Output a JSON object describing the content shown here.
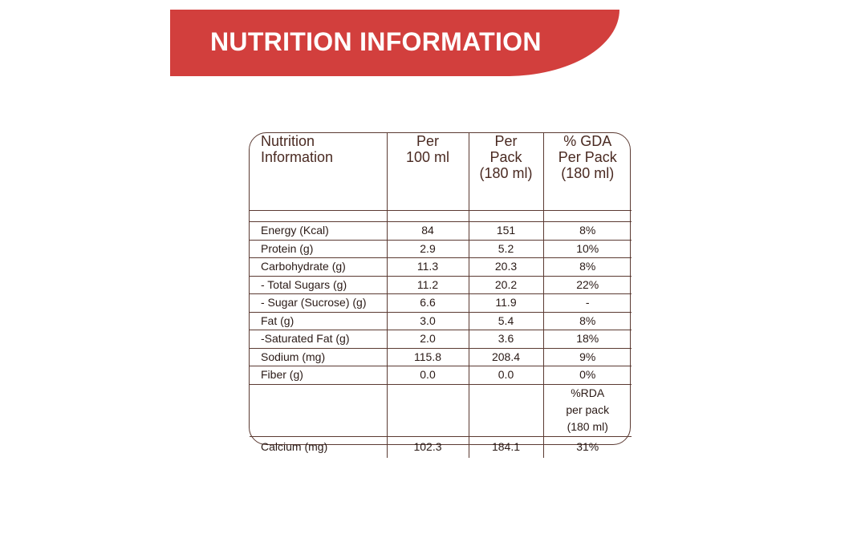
{
  "banner": {
    "title": "NUTRITION INFORMATION",
    "color": "#d23f3d"
  },
  "table": {
    "headers": [
      "Nutrition\nInformation",
      "Per\n100 ml",
      "Per\nPack\n(180 ml)",
      "% GDA\nPer Pack\n(180 ml)"
    ],
    "rows": [
      [
        "Energy (Kcal)",
        "84",
        "151",
        "8%"
      ],
      [
        "Protein (g)",
        "2.9",
        "5.2",
        "10%"
      ],
      [
        "Carbohydrate (g)",
        "11.3",
        "20.3",
        "8%"
      ],
      [
        "- Total Sugars (g)",
        "11.2",
        "20.2",
        "22%"
      ],
      [
        "- Sugar (Sucrose) (g)",
        "6.6",
        "11.9",
        "-"
      ],
      [
        "Fat (g)",
        "3.0",
        "5.4",
        "8%"
      ],
      [
        "-Saturated Fat (g)",
        "2.0",
        "3.6",
        "18%"
      ],
      [
        "Sodium (mg)",
        "115.8",
        "208.4",
        "9%"
      ],
      [
        "Fiber (g)",
        "0.0",
        "0.0",
        "0%"
      ]
    ],
    "rda_header": [
      "%RDA",
      "per pack",
      "(180 ml)"
    ],
    "last_row": [
      "Calcium (mg)",
      "102.3",
      "184.1",
      "31%"
    ]
  }
}
